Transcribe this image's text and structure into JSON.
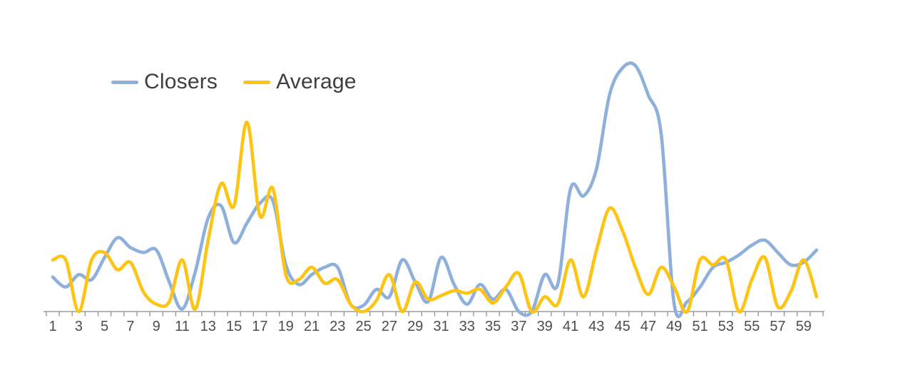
{
  "chart_data": {
    "type": "line",
    "title": "",
    "xlabel": "",
    "ylabel": "",
    "grid": false,
    "legend_position": "top-left",
    "ylim": [
      0,
      100
    ],
    "x": [
      1,
      2,
      3,
      4,
      5,
      6,
      7,
      8,
      9,
      10,
      11,
      12,
      13,
      14,
      15,
      16,
      17,
      18,
      19,
      20,
      21,
      22,
      23,
      24,
      25,
      26,
      27,
      28,
      29,
      30,
      31,
      32,
      33,
      34,
      35,
      36,
      37,
      38,
      39,
      40,
      41,
      42,
      43,
      44,
      45,
      46,
      47,
      48,
      49,
      50,
      51,
      52,
      53,
      54,
      55,
      56,
      57,
      58,
      59,
      60
    ],
    "x_tick_labels": [
      "1",
      "3",
      "5",
      "7",
      "9",
      "11",
      "13",
      "15",
      "17",
      "19",
      "21",
      "23",
      "25",
      "27",
      "29",
      "31",
      "33",
      "35",
      "37",
      "39",
      "41",
      "43",
      "45",
      "47",
      "49",
      "51",
      "53",
      "55",
      "57",
      "59"
    ],
    "series": [
      {
        "name": "Closers",
        "color": "#8FB0DB",
        "values": [
          14,
          10,
          15,
          13,
          22,
          30,
          26,
          24,
          25,
          12,
          1,
          16,
          38,
          43,
          28,
          36,
          44,
          45,
          19,
          11,
          15,
          18,
          18,
          3,
          2.5,
          9,
          6,
          21,
          12,
          4,
          22,
          11,
          3,
          11,
          5,
          9,
          0,
          0,
          15,
          11,
          50,
          47,
          58,
          88,
          99,
          100,
          88,
          72,
          3,
          4,
          10,
          18,
          20,
          23,
          27,
          29,
          24,
          19,
          20,
          25
        ]
      },
      {
        "name": "Average",
        "color": "#FDC414",
        "values": [
          21,
          21,
          0,
          21,
          24,
          17,
          20,
          8,
          3,
          4,
          21,
          1,
          29,
          52,
          43,
          77,
          39,
          50,
          15,
          13,
          18,
          11.5,
          13,
          3,
          0,
          4.5,
          15,
          0,
          12,
          5,
          6.5,
          8.5,
          7.5,
          9,
          3.5,
          10,
          15.5,
          0,
          6,
          3,
          21,
          6,
          25,
          42,
          33,
          18,
          7,
          18,
          10,
          0,
          21,
          19,
          21,
          0,
          13,
          22,
          2,
          8,
          21,
          6
        ]
      }
    ],
    "axis_color": "#B5B5B5",
    "tick_color": "#8F8F8F",
    "tick_label_color": "#4C4C4F",
    "legend_text_color": "#3E3E41"
  },
  "legend": {
    "items": [
      {
        "label": "Closers",
        "color": "#8FB0DB"
      },
      {
        "label": "Average",
        "color": "#FDC414"
      }
    ]
  }
}
